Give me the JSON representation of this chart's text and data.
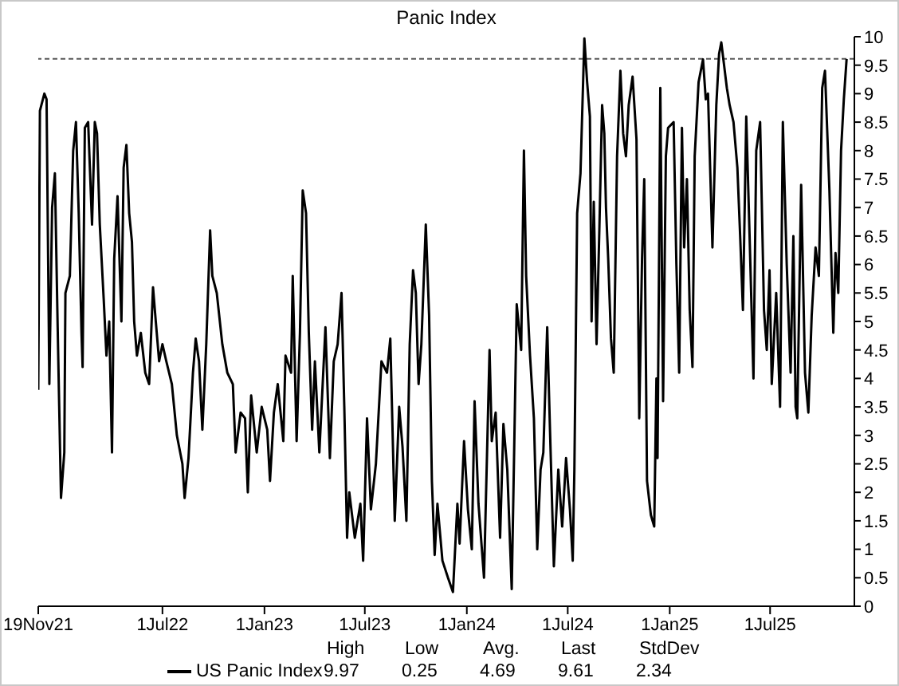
{
  "chart_data": {
    "type": "line",
    "title": "Panic Index",
    "x": [
      "2021-11-19",
      "2021-11-22",
      "2021-11-30",
      "2021-12-04",
      "2021-12-09",
      "2021-12-14",
      "2021-12-19",
      "2021-12-24",
      "2021-12-30",
      "2022-01-05",
      "2022-01-07",
      "2022-01-15",
      "2022-01-21",
      "2022-01-26",
      "2022-01-31",
      "2022-02-05",
      "2022-02-07",
      "2022-02-11",
      "2022-02-17",
      "2022-02-24",
      "2022-03-01",
      "2022-03-05",
      "2022-03-10",
      "2022-03-17",
      "2022-03-22",
      "2022-03-27",
      "2022-04-01",
      "2022-04-05",
      "2022-04-11",
      "2022-04-18",
      "2022-04-22",
      "2022-04-27",
      "2022-05-02",
      "2022-05-07",
      "2022-05-11",
      "2022-05-16",
      "2022-05-23",
      "2022-05-31",
      "2022-06-07",
      "2022-06-14",
      "2022-06-19",
      "2022-06-25",
      "2022-07-01",
      "2022-07-08",
      "2022-07-18",
      "2022-07-27",
      "2022-08-06",
      "2022-08-10",
      "2022-08-17",
      "2022-08-25",
      "2022-08-30",
      "2022-09-05",
      "2022-09-11",
      "2022-09-18",
      "2022-09-25",
      "2022-09-29",
      "2022-10-07",
      "2022-10-17",
      "2022-10-26",
      "2022-11-05",
      "2022-11-10",
      "2022-11-19",
      "2022-11-27",
      "2022-12-02",
      "2022-12-08",
      "2022-12-18",
      "2022-12-27",
      "2023-01-06",
      "2023-01-11",
      "2023-01-18",
      "2023-01-25",
      "2023-02-04",
      "2023-02-08",
      "2023-02-18",
      "2023-02-21",
      "2023-02-28",
      "2023-03-06",
      "2023-03-11",
      "2023-03-17",
      "2023-03-22",
      "2023-03-28",
      "2023-04-02",
      "2023-04-10",
      "2023-04-21",
      "2023-04-29",
      "2023-05-06",
      "2023-05-13",
      "2023-05-20",
      "2023-05-25",
      "2023-05-30",
      "2023-06-03",
      "2023-06-13",
      "2023-06-23",
      "2023-06-28",
      "2023-07-05",
      "2023-07-12",
      "2023-07-21",
      "2023-07-31",
      "2023-08-10",
      "2023-08-16",
      "2023-08-24",
      "2023-09-01",
      "2023-09-07",
      "2023-09-14",
      "2023-09-20",
      "2023-09-26",
      "2023-10-01",
      "2023-10-06",
      "2023-10-11",
      "2023-10-19",
      "2023-10-25",
      "2023-10-30",
      "2023-11-04",
      "2023-11-09",
      "2023-11-18",
      "2023-11-28",
      "2023-12-07",
      "2023-12-15",
      "2023-12-19",
      "2023-12-27",
      "2024-01-03",
      "2024-01-10",
      "2024-01-15",
      "2024-01-22",
      "2024-02-01",
      "2024-02-11",
      "2024-02-15",
      "2024-02-22",
      "2024-03-01",
      "2024-03-07",
      "2024-03-14",
      "2024-03-22",
      "2024-03-31",
      "2024-04-08",
      "2024-04-13",
      "2024-04-17",
      "2024-04-24",
      "2024-05-01",
      "2024-05-07",
      "2024-05-13",
      "2024-05-18",
      "2024-05-25",
      "2024-05-30",
      "2024-06-06",
      "2024-06-14",
      "2024-06-21",
      "2024-06-28",
      "2024-07-05",
      "2024-07-10",
      "2024-07-13",
      "2024-07-18",
      "2024-07-24",
      "2024-07-31",
      "2024-08-05",
      "2024-08-10",
      "2024-08-13",
      "2024-08-17",
      "2024-08-22",
      "2024-08-27",
      "2024-09-01",
      "2024-09-05",
      "2024-09-08",
      "2024-09-12",
      "2024-09-17",
      "2024-09-22",
      "2024-09-28",
      "2024-10-04",
      "2024-10-09",
      "2024-10-14",
      "2024-10-19",
      "2024-10-26",
      "2024-11-02",
      "2024-11-07",
      "2024-11-12",
      "2024-11-16",
      "2024-11-21",
      "2024-11-28",
      "2024-12-04",
      "2024-12-08",
      "2024-12-10",
      "2024-12-15",
      "2024-12-20",
      "2024-12-25",
      "2024-12-29",
      "2025-01-08",
      "2025-01-13",
      "2025-01-18",
      "2025-01-23",
      "2025-01-27",
      "2025-02-01",
      "2025-02-06",
      "2025-02-11",
      "2025-02-15",
      "2025-02-22",
      "2025-03-02",
      "2025-03-07",
      "2025-03-11",
      "2025-03-19",
      "2025-03-26",
      "2025-03-31",
      "2025-04-04",
      "2025-04-14",
      "2025-04-19",
      "2025-04-26",
      "2025-05-03",
      "2025-05-08",
      "2025-05-13",
      "2025-05-19",
      "2025-05-25",
      "2025-06-01",
      "2025-06-06",
      "2025-06-13",
      "2025-06-20",
      "2025-06-25",
      "2025-06-30",
      "2025-07-04",
      "2025-07-12",
      "2025-07-19",
      "2025-07-24",
      "2025-07-31",
      "2025-08-07",
      "2025-08-12",
      "2025-08-16",
      "2025-08-19",
      "2025-08-26",
      "2025-09-02",
      "2025-09-08",
      "2025-09-14",
      "2025-09-21",
      "2025-09-27",
      "2025-10-03",
      "2025-10-08",
      "2025-10-16",
      "2025-10-23",
      "2025-10-27",
      "2025-11-01",
      "2025-11-06",
      "2025-11-11",
      "2025-11-16"
    ],
    "series": [
      {
        "name": "US Panic Index",
        "color": "#000000",
        "values": [
          3.8,
          8.7,
          9.0,
          8.9,
          3.9,
          7.0,
          7.6,
          4.9,
          1.9,
          2.7,
          5.5,
          5.8,
          8.0,
          8.5,
          6.9,
          4.8,
          4.2,
          8.4,
          8.5,
          6.7,
          8.5,
          8.3,
          6.7,
          5.4,
          4.4,
          5.0,
          2.7,
          6.1,
          7.2,
          5.0,
          7.7,
          8.1,
          6.9,
          6.4,
          5.0,
          4.4,
          4.8,
          4.1,
          3.9,
          5.6,
          5.0,
          4.3,
          4.6,
          4.3,
          3.9,
          3.0,
          2.5,
          1.9,
          2.6,
          4.1,
          4.7,
          4.3,
          3.1,
          4.6,
          6.6,
          5.8,
          5.5,
          4.6,
          4.1,
          3.9,
          2.7,
          3.4,
          3.3,
          2.0,
          3.7,
          2.7,
          3.5,
          3.1,
          2.2,
          3.4,
          3.9,
          2.9,
          4.4,
          4.1,
          5.8,
          2.9,
          4.8,
          7.3,
          6.9,
          4.8,
          3.1,
          4.3,
          2.7,
          4.9,
          2.6,
          4.3,
          4.6,
          5.5,
          3.5,
          1.2,
          2.0,
          1.2,
          1.8,
          0.8,
          3.3,
          1.7,
          2.5,
          4.3,
          4.1,
          4.7,
          1.5,
          3.5,
          2.8,
          1.5,
          4.6,
          5.9,
          5.5,
          3.9,
          4.6,
          6.7,
          5.1,
          2.2,
          0.9,
          1.8,
          0.8,
          0.5,
          0.25,
          1.8,
          1.1,
          2.9,
          1.7,
          1.0,
          3.6,
          1.8,
          0.5,
          4.5,
          2.9,
          3.4,
          1.2,
          3.2,
          2.4,
          0.3,
          5.3,
          4.5,
          8.0,
          5.8,
          4.4,
          3.3,
          1.0,
          2.4,
          2.7,
          4.9,
          3.1,
          0.7,
          2.4,
          1.4,
          2.6,
          1.7,
          0.8,
          2.4,
          6.9,
          7.6,
          9.97,
          9.2,
          8.6,
          5.0,
          7.1,
          4.6,
          6.6,
          8.8,
          8.3,
          7.0,
          6.1,
          4.7,
          4.1,
          7.9,
          9.4,
          8.3,
          7.9,
          8.8,
          9.3,
          8.2,
          3.3,
          6.1,
          7.5,
          2.2,
          1.6,
          1.4,
          4.0,
          2.6,
          9.1,
          3.6,
          7.9,
          8.4,
          8.5,
          6.0,
          4.1,
          8.4,
          6.3,
          7.5,
          5.2,
          4.2,
          7.9,
          9.2,
          9.6,
          8.9,
          9.0,
          6.3,
          8.8,
          9.7,
          9.9,
          9.1,
          8.8,
          8.5,
          7.7,
          6.5,
          5.2,
          8.6,
          6.5,
          4.0,
          8.0,
          8.5,
          5.2,
          4.5,
          5.9,
          3.9,
          5.5,
          3.5,
          8.5,
          6.0,
          4.1,
          6.5,
          3.5,
          3.3,
          7.4,
          4.1,
          3.4,
          5.1,
          6.3,
          5.8,
          9.1,
          9.4,
          7.3,
          4.8,
          6.2,
          5.5,
          8.0,
          8.9,
          9.61
        ]
      }
    ],
    "xlim": [
      "2021-11-19",
      "2025-11-30"
    ],
    "xticks": [
      {
        "value": "2021-11-19",
        "label": "19Nov21"
      },
      {
        "value": "2022-07-01",
        "label": "1Jul22"
      },
      {
        "value": "2023-01-01",
        "label": "1Jan23"
      },
      {
        "value": "2023-07-01",
        "label": "1Jul23"
      },
      {
        "value": "2024-01-01",
        "label": "1Jan24"
      },
      {
        "value": "2024-07-01",
        "label": "1Jul24"
      },
      {
        "value": "2025-01-01",
        "label": "1Jan25"
      },
      {
        "value": "2025-07-01",
        "label": "1Jul25"
      }
    ],
    "ylim": [
      0,
      10
    ],
    "yticks": [
      0,
      0.5,
      1,
      1.5,
      2,
      2.5,
      3,
      3.5,
      4,
      4.5,
      5,
      5.5,
      6,
      6.5,
      7,
      7.5,
      8,
      8.5,
      9,
      9.5,
      10
    ],
    "ref_lines": [
      {
        "axis": "y",
        "value": 9.61,
        "color": "#595959",
        "line_style": "dashed"
      }
    ],
    "legend": "bottom",
    "annotations": [
      "High",
      "Low",
      "Avg.",
      "Last",
      "StdDev",
      "9.97",
      "0.25",
      "4.69",
      "9.61",
      "2.34"
    ]
  }
}
